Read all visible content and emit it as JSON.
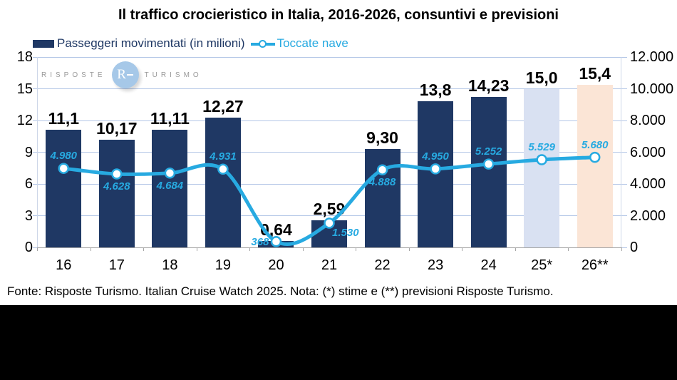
{
  "title": "Il traffico crocieristico in Italia, 2016-2026, consuntivi e previsioni",
  "legend": {
    "bar_label": "Passeggeri movimentati (in milioni)",
    "line_label": "Toccate nave"
  },
  "watermark": {
    "left_text": "RISPOSTE",
    "right_text": "TURISMO",
    "monogram": "R"
  },
  "footer": "Fonte: Risposte Turismo. Italian Cruise Watch 2025. Nota: (*) stime e (**) previsioni Risposte Turismo.",
  "colors": {
    "bar": "#1F3864",
    "bar_estimate": "#D9E1F2",
    "bar_forecast": "#FBE5D6",
    "line": "#27AAE1",
    "grid": "#B4C7E7",
    "axis": "#A6A6A6"
  },
  "chart_data": {
    "type": "combo (bar + line)",
    "categories": [
      "16",
      "17",
      "18",
      "19",
      "20",
      "21",
      "22",
      "23",
      "24",
      "25*",
      "26**"
    ],
    "series": [
      {
        "name": "Passeggeri movimentati (in milioni)",
        "type": "bar",
        "axis": "left",
        "values": [
          11.1,
          10.17,
          11.11,
          12.27,
          0.64,
          2.59,
          9.3,
          13.8,
          14.23,
          15.0,
          15.4
        ],
        "labels": [
          "11,1",
          "10,17",
          "11,11",
          "12,27",
          "0,64",
          "2,59",
          "9,30",
          "13,8",
          "14,23",
          "15,0",
          "15,4"
        ],
        "bar_colors": {
          "9": "#D9E1F2",
          "10": "#FBE5D6"
        }
      },
      {
        "name": "Toccate nave",
        "type": "line",
        "axis": "right",
        "values": [
          4980,
          4628,
          4684,
          4931,
          368,
          1530,
          4888,
          4950,
          5252,
          5529,
          5680
        ],
        "labels": [
          "4.980",
          "4.628",
          "4.684",
          "4.931",
          "368",
          "1.530",
          "4.888",
          "4.950",
          "5.252",
          "5.529",
          "5.680"
        ],
        "label_pos": [
          "above",
          "below",
          "below",
          "above",
          "left",
          "below-right",
          "below",
          "above",
          "above",
          "above",
          "above"
        ]
      }
    ],
    "left_axis": {
      "min": 0,
      "max": 18,
      "step": 3,
      "ticks": [
        "18",
        "15",
        "12",
        "9",
        "6",
        "3",
        "0"
      ]
    },
    "right_axis": {
      "min": 0,
      "max": 12000,
      "step": 2000,
      "ticks": [
        "12.000",
        "10.000",
        "8.000",
        "6.000",
        "4.000",
        "2.000",
        "0"
      ]
    },
    "grid": true,
    "legend_position": "top-left"
  }
}
